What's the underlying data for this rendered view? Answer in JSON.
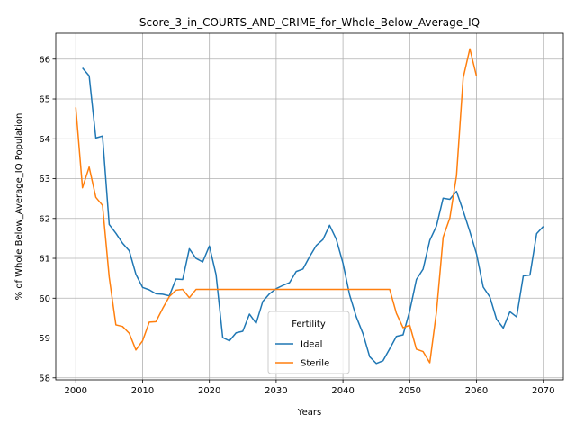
{
  "chart_data": {
    "type": "line",
    "title": "Score_3_in_COURTS_AND_CRIME_for_Whole_Below_Average_IQ",
    "xlabel": "Years",
    "ylabel": "% of Whole Below_Average_IQ Population",
    "xlim": [
      1997,
      2073
    ],
    "ylim": [
      57.95,
      66.65
    ],
    "xticks": [
      2000,
      2010,
      2020,
      2030,
      2040,
      2050,
      2060,
      2070
    ],
    "yticks": [
      58,
      59,
      60,
      61,
      62,
      63,
      64,
      65,
      66
    ],
    "grid": true,
    "legend": {
      "title": "Fertility",
      "placement": "lower-center"
    },
    "series": [
      {
        "name": "Ideal",
        "color": "#1f77b4",
        "x": [
          2001,
          2002,
          2003,
          2004,
          2005,
          2006,
          2007,
          2008,
          2009,
          2010,
          2011,
          2012,
          2013,
          2014,
          2015,
          2016,
          2017,
          2018,
          2019,
          2020,
          2021,
          2022,
          2023,
          2024,
          2025,
          2026,
          2027,
          2028,
          2029,
          2030,
          2031,
          2032,
          2033,
          2034,
          2035,
          2036,
          2037,
          2038,
          2039,
          2040,
          2041,
          2042,
          2043,
          2044,
          2045,
          2046,
          2047,
          2048,
          2049,
          2050,
          2051,
          2052,
          2053,
          2054,
          2055,
          2056,
          2057,
          2058,
          2059,
          2060,
          2061,
          2062,
          2063,
          2064,
          2065,
          2066,
          2067,
          2068,
          2069,
          2070
        ],
        "values": [
          65.78,
          65.58,
          64.02,
          64.07,
          61.85,
          61.63,
          61.38,
          61.19,
          60.6,
          60.27,
          60.21,
          60.11,
          60.1,
          60.06,
          60.48,
          60.47,
          61.24,
          61.0,
          60.91,
          61.31,
          60.59,
          59.01,
          58.93,
          59.13,
          59.17,
          59.6,
          59.37,
          59.92,
          60.11,
          60.24,
          60.32,
          60.39,
          60.67,
          60.73,
          61.04,
          61.32,
          61.47,
          61.83,
          61.48,
          60.88,
          60.08,
          59.53,
          59.11,
          58.53,
          58.36,
          58.43,
          58.73,
          59.04,
          59.08,
          59.68,
          60.47,
          60.73,
          61.45,
          61.81,
          62.51,
          62.48,
          62.68,
          62.19,
          61.67,
          61.11,
          60.28,
          60.03,
          59.47,
          59.25,
          59.66,
          59.53,
          60.56,
          60.58,
          61.62,
          61.8
        ]
      },
      {
        "name": "Sterile",
        "color": "#ff7f0e",
        "x": [
          2000,
          2001,
          2002,
          2003,
          2004,
          2005,
          2006,
          2007,
          2008,
          2009,
          2010,
          2011,
          2012,
          2013,
          2014,
          2015,
          2016,
          2017,
          2018,
          2019,
          2020,
          2021,
          2022,
          2023,
          2024,
          2025,
          2026,
          2027,
          2028,
          2029,
          2030,
          2031,
          2032,
          2033,
          2034,
          2035,
          2036,
          2037,
          2038,
          2039,
          2040,
          2041,
          2042,
          2043,
          2044,
          2045,
          2046,
          2047,
          2048,
          2049,
          2050,
          2051,
          2052,
          2053,
          2054,
          2055,
          2056,
          2057,
          2058,
          2059,
          2060
        ],
        "values": [
          64.79,
          62.77,
          63.29,
          62.53,
          62.33,
          60.53,
          59.33,
          59.29,
          59.12,
          58.7,
          58.93,
          59.4,
          59.41,
          59.74,
          60.04,
          60.2,
          60.22,
          60.01,
          60.22,
          60.22,
          60.22,
          60.22,
          60.22,
          60.22,
          60.22,
          60.22,
          60.22,
          60.22,
          60.22,
          60.22,
          60.22,
          60.22,
          60.22,
          60.22,
          60.22,
          60.22,
          60.22,
          60.22,
          60.22,
          60.22,
          60.22,
          60.22,
          60.22,
          60.22,
          60.22,
          60.22,
          60.22,
          60.22,
          59.62,
          59.26,
          59.32,
          58.72,
          58.66,
          58.38,
          59.65,
          61.53,
          62.01,
          63.07,
          65.53,
          66.26,
          65.57
        ]
      }
    ]
  }
}
